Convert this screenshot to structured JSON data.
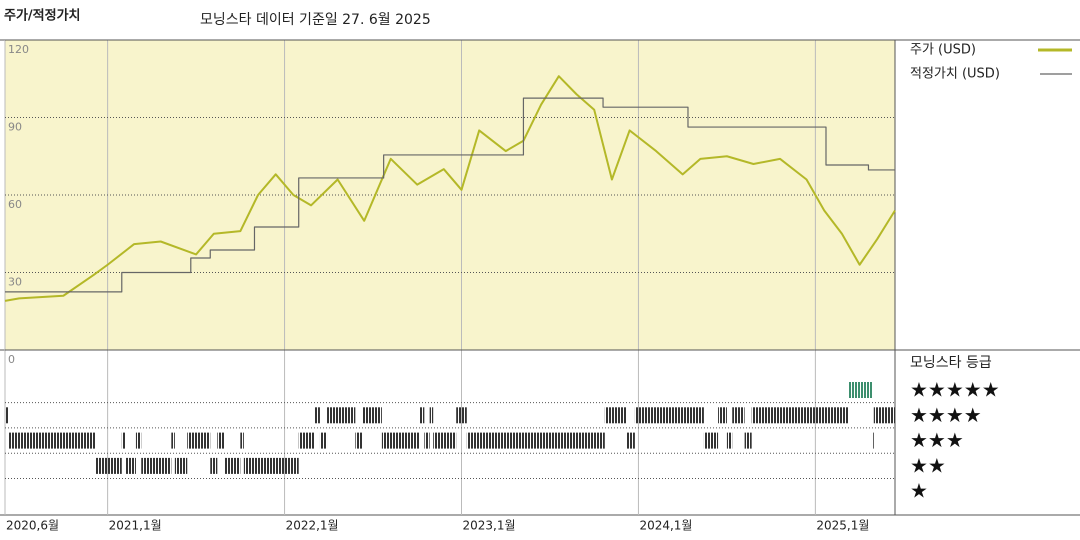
{
  "title": "주가/적정가치",
  "subtitle": "모닝스타 데이터 기준일 27. 6월 2025",
  "chart_data": {
    "type": "line",
    "xlim": [
      2020.42,
      2025.45
    ],
    "xticks": [
      {
        "value": 2020.42,
        "label": "2020,6월"
      },
      {
        "value": 2021.0,
        "label": "2021,1월"
      },
      {
        "value": 2022.0,
        "label": "2022,1월"
      },
      {
        "value": 2023.0,
        "label": "2023,1월"
      },
      {
        "value": 2024.0,
        "label": "2024,1월"
      },
      {
        "value": 2025.0,
        "label": "2025,1월"
      }
    ],
    "ylim": [
      0,
      120
    ],
    "yticks": [
      0,
      30,
      60,
      90,
      120
    ],
    "grid": true,
    "series": [
      {
        "name": "주가 (USD)",
        "color": "#b4b828",
        "x": [
          2020.42,
          2020.5,
          2020.75,
          2020.92,
          2021.0,
          2021.15,
          2021.3,
          2021.5,
          2021.6,
          2021.75,
          2021.85,
          2021.95,
          2022.05,
          2022.15,
          2022.3,
          2022.45,
          2022.6,
          2022.75,
          2022.9,
          2023.0,
          2023.1,
          2023.25,
          2023.35,
          2023.45,
          2023.55,
          2023.65,
          2023.75,
          2023.85,
          2023.95,
          2024.1,
          2024.25,
          2024.35,
          2024.5,
          2024.65,
          2024.8,
          2024.95,
          2025.05,
          2025.15,
          2025.25,
          2025.35,
          2025.45
        ],
        "values": [
          19,
          20,
          21,
          29,
          33,
          41,
          42,
          37,
          45,
          46,
          60,
          68,
          60,
          56,
          66,
          50,
          74,
          64,
          70,
          62,
          85,
          77,
          81,
          95,
          106,
          99,
          93,
          66,
          85,
          77,
          68,
          74,
          75,
          72,
          74,
          66,
          54,
          45,
          33,
          43,
          54
        ]
      },
      {
        "name": "적정가치 (USD)",
        "color": "#666666",
        "step": true,
        "x": [
          2020.42,
          2021.08,
          2021.47,
          2021.58,
          2021.83,
          2022.08,
          2022.56,
          2023.35,
          2023.8,
          2024.28,
          2025.06,
          2025.3
        ],
        "values": [
          22.5,
          30,
          35.6,
          38.7,
          47.6,
          66.6,
          75.5,
          97.5,
          94,
          86.3,
          71.6,
          69.7
        ]
      }
    ],
    "ratings": {
      "title": "모닝스타 등급",
      "levels": [
        5,
        4,
        3,
        2,
        1
      ],
      "level_labels": [
        "★★★★★",
        "★★★★",
        "★★★",
        "★★",
        "★"
      ],
      "color": "#333333",
      "top_color": "#3d8f6e",
      "x": [
        2020.42,
        2020.44,
        2020.93,
        2021.08,
        2021.1,
        2021.16,
        2021.19,
        2021.36,
        2021.38,
        2021.45,
        2021.58,
        2021.62,
        2021.66,
        2021.75,
        2021.77,
        2022.08,
        2022.17,
        2022.2,
        2022.24,
        2022.4,
        2022.44,
        2022.55,
        2022.76,
        2022.79,
        2022.82,
        2022.84,
        2022.97,
        2023.03,
        2023.81,
        2023.93,
        2023.98,
        2024.37,
        2024.45,
        2024.5,
        2024.53,
        2024.6,
        2024.64,
        2025.19,
        2025.32,
        2025.33
      ],
      "values": [
        4,
        3,
        2,
        3,
        2,
        3,
        2,
        3,
        2,
        3,
        2,
        3,
        2,
        3,
        2,
        3,
        4,
        3,
        4,
        3,
        4,
        3,
        4,
        3,
        4,
        3,
        4,
        3,
        4,
        3,
        4,
        3,
        4,
        3,
        4,
        3,
        4,
        5,
        3,
        4
      ]
    }
  }
}
